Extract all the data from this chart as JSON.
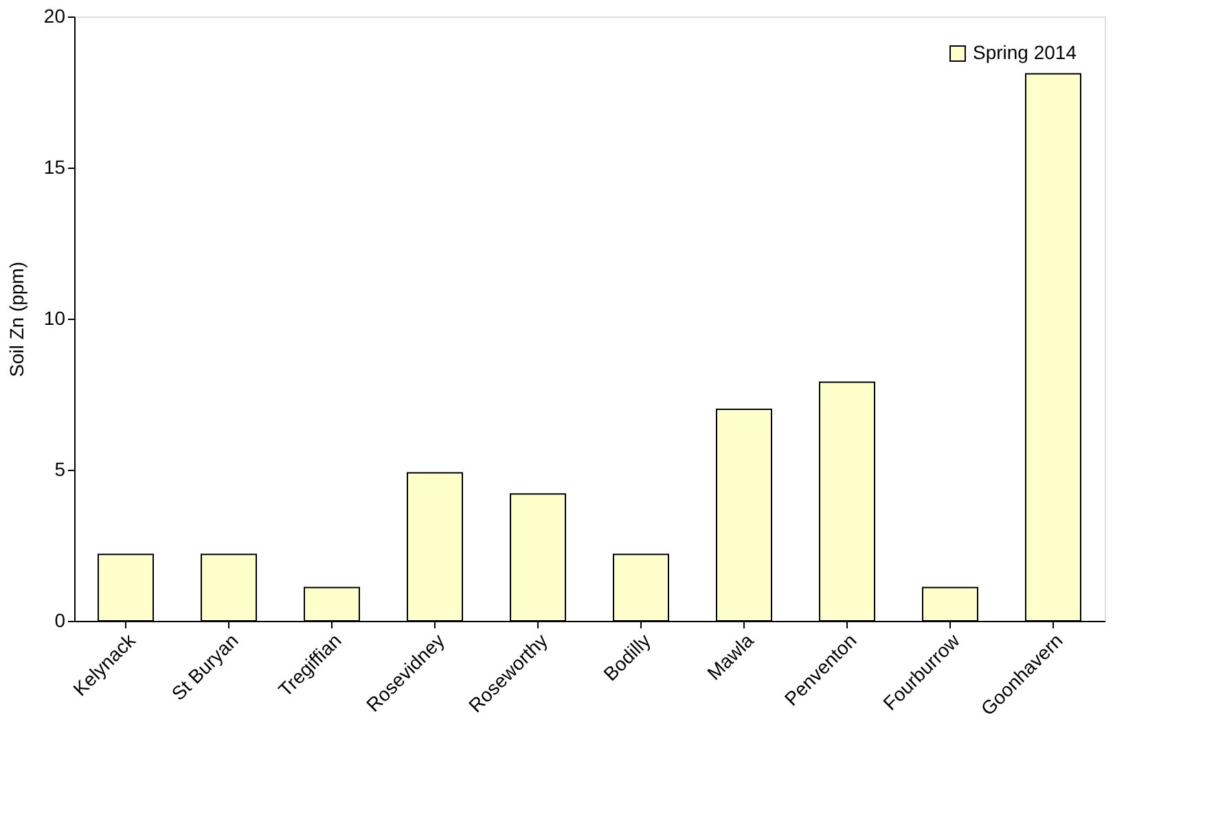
{
  "chart_data": {
    "type": "bar",
    "ylabel": "Soil Zn (ppm)",
    "categories": [
      "Kelynack",
      "St Buryan",
      "Tregiffian",
      "Rosevidney",
      "Roseworthy",
      "Bodilly",
      "Mawla",
      "Penventon",
      "Fourburrow",
      "Goonhavern"
    ],
    "series": [
      {
        "name": "Spring 2014",
        "color": "#ffffcc",
        "values": [
          2.2,
          2.2,
          1.1,
          4.9,
          4.2,
          2.2,
          7.0,
          7.9,
          1.1,
          18.1
        ]
      }
    ],
    "ylim": [
      0,
      20
    ],
    "yticks": [
      0,
      5,
      10,
      15,
      20
    ],
    "grid": false,
    "legend": "top right"
  }
}
